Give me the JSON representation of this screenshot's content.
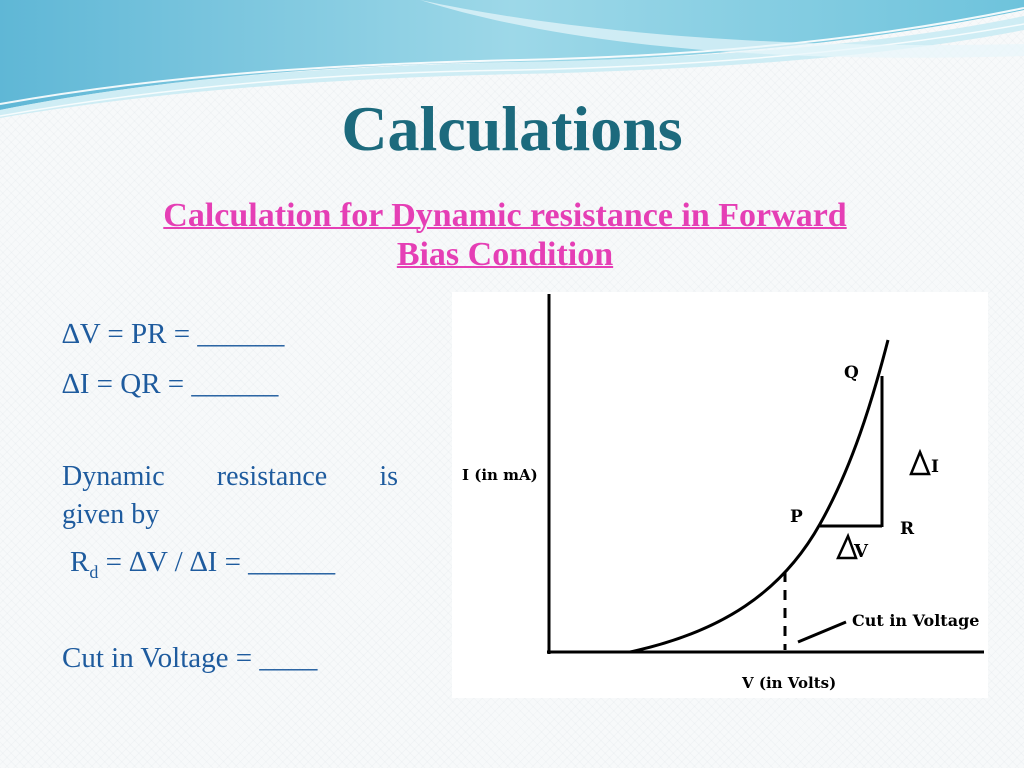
{
  "slide": {
    "title": "Calculations",
    "subtitle_line1": "Calculation  for  Dynamic resistance in Forward",
    "subtitle_line2": "Bias Condition"
  },
  "equations": {
    "delta_v": "∆V = PR = ______",
    "delta_i": "∆I  = QR  = ______",
    "dynamic_w1": "Dynamic",
    "dynamic_w2": "resistance",
    "dynamic_w3": "is",
    "dynamic_line2": "given by",
    "rd_symbol": "R",
    "rd_subscript": "d",
    "rd_rest": " = ∆V / ∆I = ______",
    "cut_in": "Cut in Voltage = ____"
  },
  "diagram": {
    "y_axis_label": "I (in mA)",
    "x_axis_label": "V (in Volts)",
    "point_q": "Q",
    "point_p": "P",
    "point_r": "R",
    "delta_i_label": "I",
    "delta_v_label": "V",
    "cut_in_label": "Cut in Voltage"
  },
  "colors": {
    "title": "#1c6a7d",
    "subtitle": "#e53fb5",
    "body_text": "#1e5b9e",
    "banner_light": "#bfe3ee",
    "banner_mid": "#7cc7dc"
  }
}
